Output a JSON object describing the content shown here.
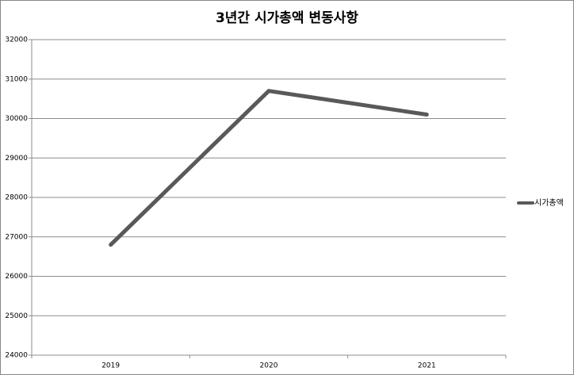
{
  "chart_data": {
    "type": "line",
    "title": "3년간 시가총액 변동사항",
    "categories": [
      "2019",
      "2020",
      "2021"
    ],
    "series": [
      {
        "name": "시가총액",
        "color": "#595959",
        "values": [
          26800,
          30700,
          30100
        ]
      }
    ],
    "ylim": [
      24000,
      32000
    ],
    "yticks": [
      24000,
      25000,
      26000,
      27000,
      28000,
      29000,
      30000,
      31000,
      32000
    ],
    "grid": true,
    "legend": "right"
  }
}
